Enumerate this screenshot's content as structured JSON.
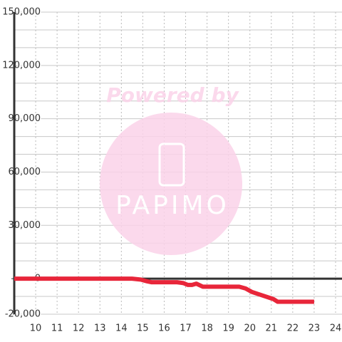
{
  "chart_data": {
    "type": "line",
    "watermark_text": "Powered by",
    "watermark_logo": "PAPIMO",
    "x": [
      9,
      14.5,
      14.9,
      15.2,
      15.4,
      16.6,
      16.9,
      17.1,
      17.3,
      17.5,
      17.8,
      19.5,
      19.8,
      20.1,
      20.6,
      21.1,
      21.3,
      23
    ],
    "series": [
      {
        "color": "#e8263a",
        "values": [
          0,
          0,
          -500,
          -1500,
          -2000,
          -2000,
          -2500,
          -3500,
          -3500,
          -2800,
          -4500,
          -4500,
          -5500,
          -7500,
          -9500,
          -11500,
          -13000,
          -13000
        ]
      }
    ],
    "xlim": [
      9,
      24.3
    ],
    "ylim": [
      -20000,
      150000
    ],
    "xticks": [
      10,
      11,
      12,
      13,
      14,
      15,
      16,
      17,
      18,
      19,
      20,
      21,
      22,
      23,
      24
    ],
    "yticks": [
      {
        "value": -20000,
        "label": "-20,000"
      },
      {
        "value": 0,
        "label": "0"
      },
      {
        "value": 30000,
        "label": "30,000"
      },
      {
        "value": 60000,
        "label": "60,000"
      },
      {
        "value": 90000,
        "label": "90,000"
      },
      {
        "value": 120000,
        "label": "120,000"
      },
      {
        "value": 150000,
        "label": "150,000"
      }
    ],
    "yminorticks": [
      -10000,
      10000,
      20000,
      40000,
      50000,
      70000,
      80000,
      100000,
      110000,
      130000,
      140000
    ],
    "grid": true
  }
}
